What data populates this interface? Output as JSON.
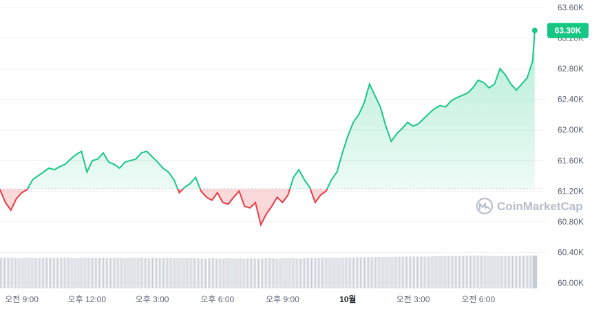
{
  "chart_data": {
    "type": "area",
    "price_unit": "USD",
    "y_ticks": [
      "63.60K",
      "63.20K",
      "62.80K",
      "62.40K",
      "62.00K",
      "61.60K",
      "61.20K",
      "60.80K",
      "60.40K",
      "60.00K"
    ],
    "ylim": [
      60.0,
      63.6
    ],
    "x_ticks": [
      "오전 9:00",
      "오후 12:00",
      "오후 3:00",
      "오후 6:00",
      "오후 9:00",
      "10월",
      "오전 3:00",
      "오전 6:00"
    ],
    "x_tick_hours": [
      9,
      12,
      15,
      18,
      21,
      24,
      27,
      30
    ],
    "x_range_hours": [
      8.0,
      32.7
    ],
    "baseline_value": 61.23,
    "current_price_label": "63.30K",
    "current_price": 63.3,
    "colors": {
      "up": "#16c784",
      "down": "#ea3943",
      "volume": "#c5cad3",
      "label_bg": "#16c784"
    },
    "series": [
      {
        "x": [
          8.0,
          8.25,
          8.5,
          8.75,
          9.0,
          9.25,
          9.5,
          9.75,
          10.0,
          10.25,
          10.5,
          10.75,
          11.0,
          11.25,
          11.5,
          11.75,
          12.0,
          12.25,
          12.5,
          12.75,
          13.0,
          13.25,
          13.5,
          13.75,
          14.0,
          14.25,
          14.5,
          14.75,
          15.0,
          15.25,
          15.5,
          15.75,
          16.0,
          16.25,
          16.5,
          16.75,
          17.0,
          17.25,
          17.5,
          17.75,
          18.0,
          18.25,
          18.5,
          18.75,
          19.0,
          19.25,
          19.5,
          19.75,
          20.0,
          20.25,
          20.5,
          20.75,
          21.0,
          21.25,
          21.5,
          21.75,
          22.0,
          22.25,
          22.5,
          22.75,
          23.0,
          23.25,
          23.5,
          23.75,
          24.0,
          24.25,
          24.5,
          24.75,
          25.0,
          25.25,
          25.5,
          25.75,
          26.0,
          26.25,
          26.5,
          26.75,
          27.0,
          27.25,
          27.5,
          27.75,
          28.0,
          28.25,
          28.5,
          28.75,
          29.0,
          29.25,
          29.5,
          29.75,
          30.0,
          30.25,
          30.5,
          30.75,
          31.0,
          31.25,
          31.5,
          31.75,
          32.0,
          32.25,
          32.5,
          32.6
        ],
        "y": [
          61.22,
          61.05,
          60.95,
          61.1,
          61.18,
          61.22,
          61.35,
          61.4,
          61.45,
          61.5,
          61.48,
          61.52,
          61.55,
          61.62,
          61.68,
          61.72,
          61.45,
          61.6,
          61.62,
          61.7,
          61.58,
          61.55,
          61.5,
          61.58,
          61.6,
          61.62,
          61.7,
          61.72,
          61.65,
          61.58,
          61.5,
          61.45,
          61.35,
          61.18,
          61.25,
          61.3,
          61.38,
          61.2,
          61.12,
          61.08,
          61.18,
          61.05,
          61.03,
          61.12,
          61.2,
          61.0,
          60.98,
          61.05,
          60.76,
          60.9,
          61.0,
          61.12,
          61.05,
          61.15,
          61.38,
          61.48,
          61.35,
          61.25,
          61.05,
          61.15,
          61.2,
          61.35,
          61.45,
          61.7,
          61.92,
          62.1,
          62.2,
          62.35,
          62.6,
          62.45,
          62.3,
          62.05,
          61.85,
          61.95,
          62.02,
          62.1,
          62.05,
          62.08,
          62.15,
          62.22,
          62.28,
          62.32,
          62.3,
          62.38,
          62.42,
          62.45,
          62.48,
          62.55,
          62.65,
          62.62,
          62.55,
          62.6,
          62.8,
          62.72,
          62.6,
          62.52,
          62.6,
          62.68,
          62.9,
          63.3
        ],
        "volume": [
          0.72,
          0.72,
          0.72,
          0.71,
          0.72,
          0.72,
          0.72,
          0.71,
          0.72,
          0.72,
          0.71,
          0.72,
          0.72,
          0.72,
          0.71,
          0.72,
          0.72,
          0.72,
          0.71,
          0.72,
          0.71,
          0.72,
          0.72,
          0.71,
          0.72,
          0.72,
          0.72,
          0.71,
          0.72,
          0.71,
          0.71,
          0.72,
          0.71,
          0.71,
          0.71,
          0.71,
          0.71,
          0.7,
          0.7,
          0.71,
          0.7,
          0.7,
          0.71,
          0.7,
          0.71,
          0.7,
          0.71,
          0.7,
          0.7,
          0.71,
          0.71,
          0.7,
          0.71,
          0.71,
          0.71,
          0.7,
          0.71,
          0.71,
          0.71,
          0.72,
          0.72,
          0.72,
          0.72,
          0.72,
          0.73,
          0.73,
          0.73,
          0.73,
          0.74,
          0.74,
          0.74,
          0.74,
          0.74,
          0.75,
          0.75,
          0.75,
          0.75,
          0.75,
          0.75,
          0.75,
          0.76,
          0.76,
          0.76,
          0.76,
          0.76,
          0.76,
          0.77,
          0.77,
          0.77,
          0.77,
          0.76,
          0.76,
          0.76,
          0.76,
          0.76,
          0.76,
          0.76,
          0.77,
          0.77,
          0.77
        ]
      }
    ],
    "watermark": "CoinMarketCap",
    "grid": true,
    "legend": "none"
  }
}
